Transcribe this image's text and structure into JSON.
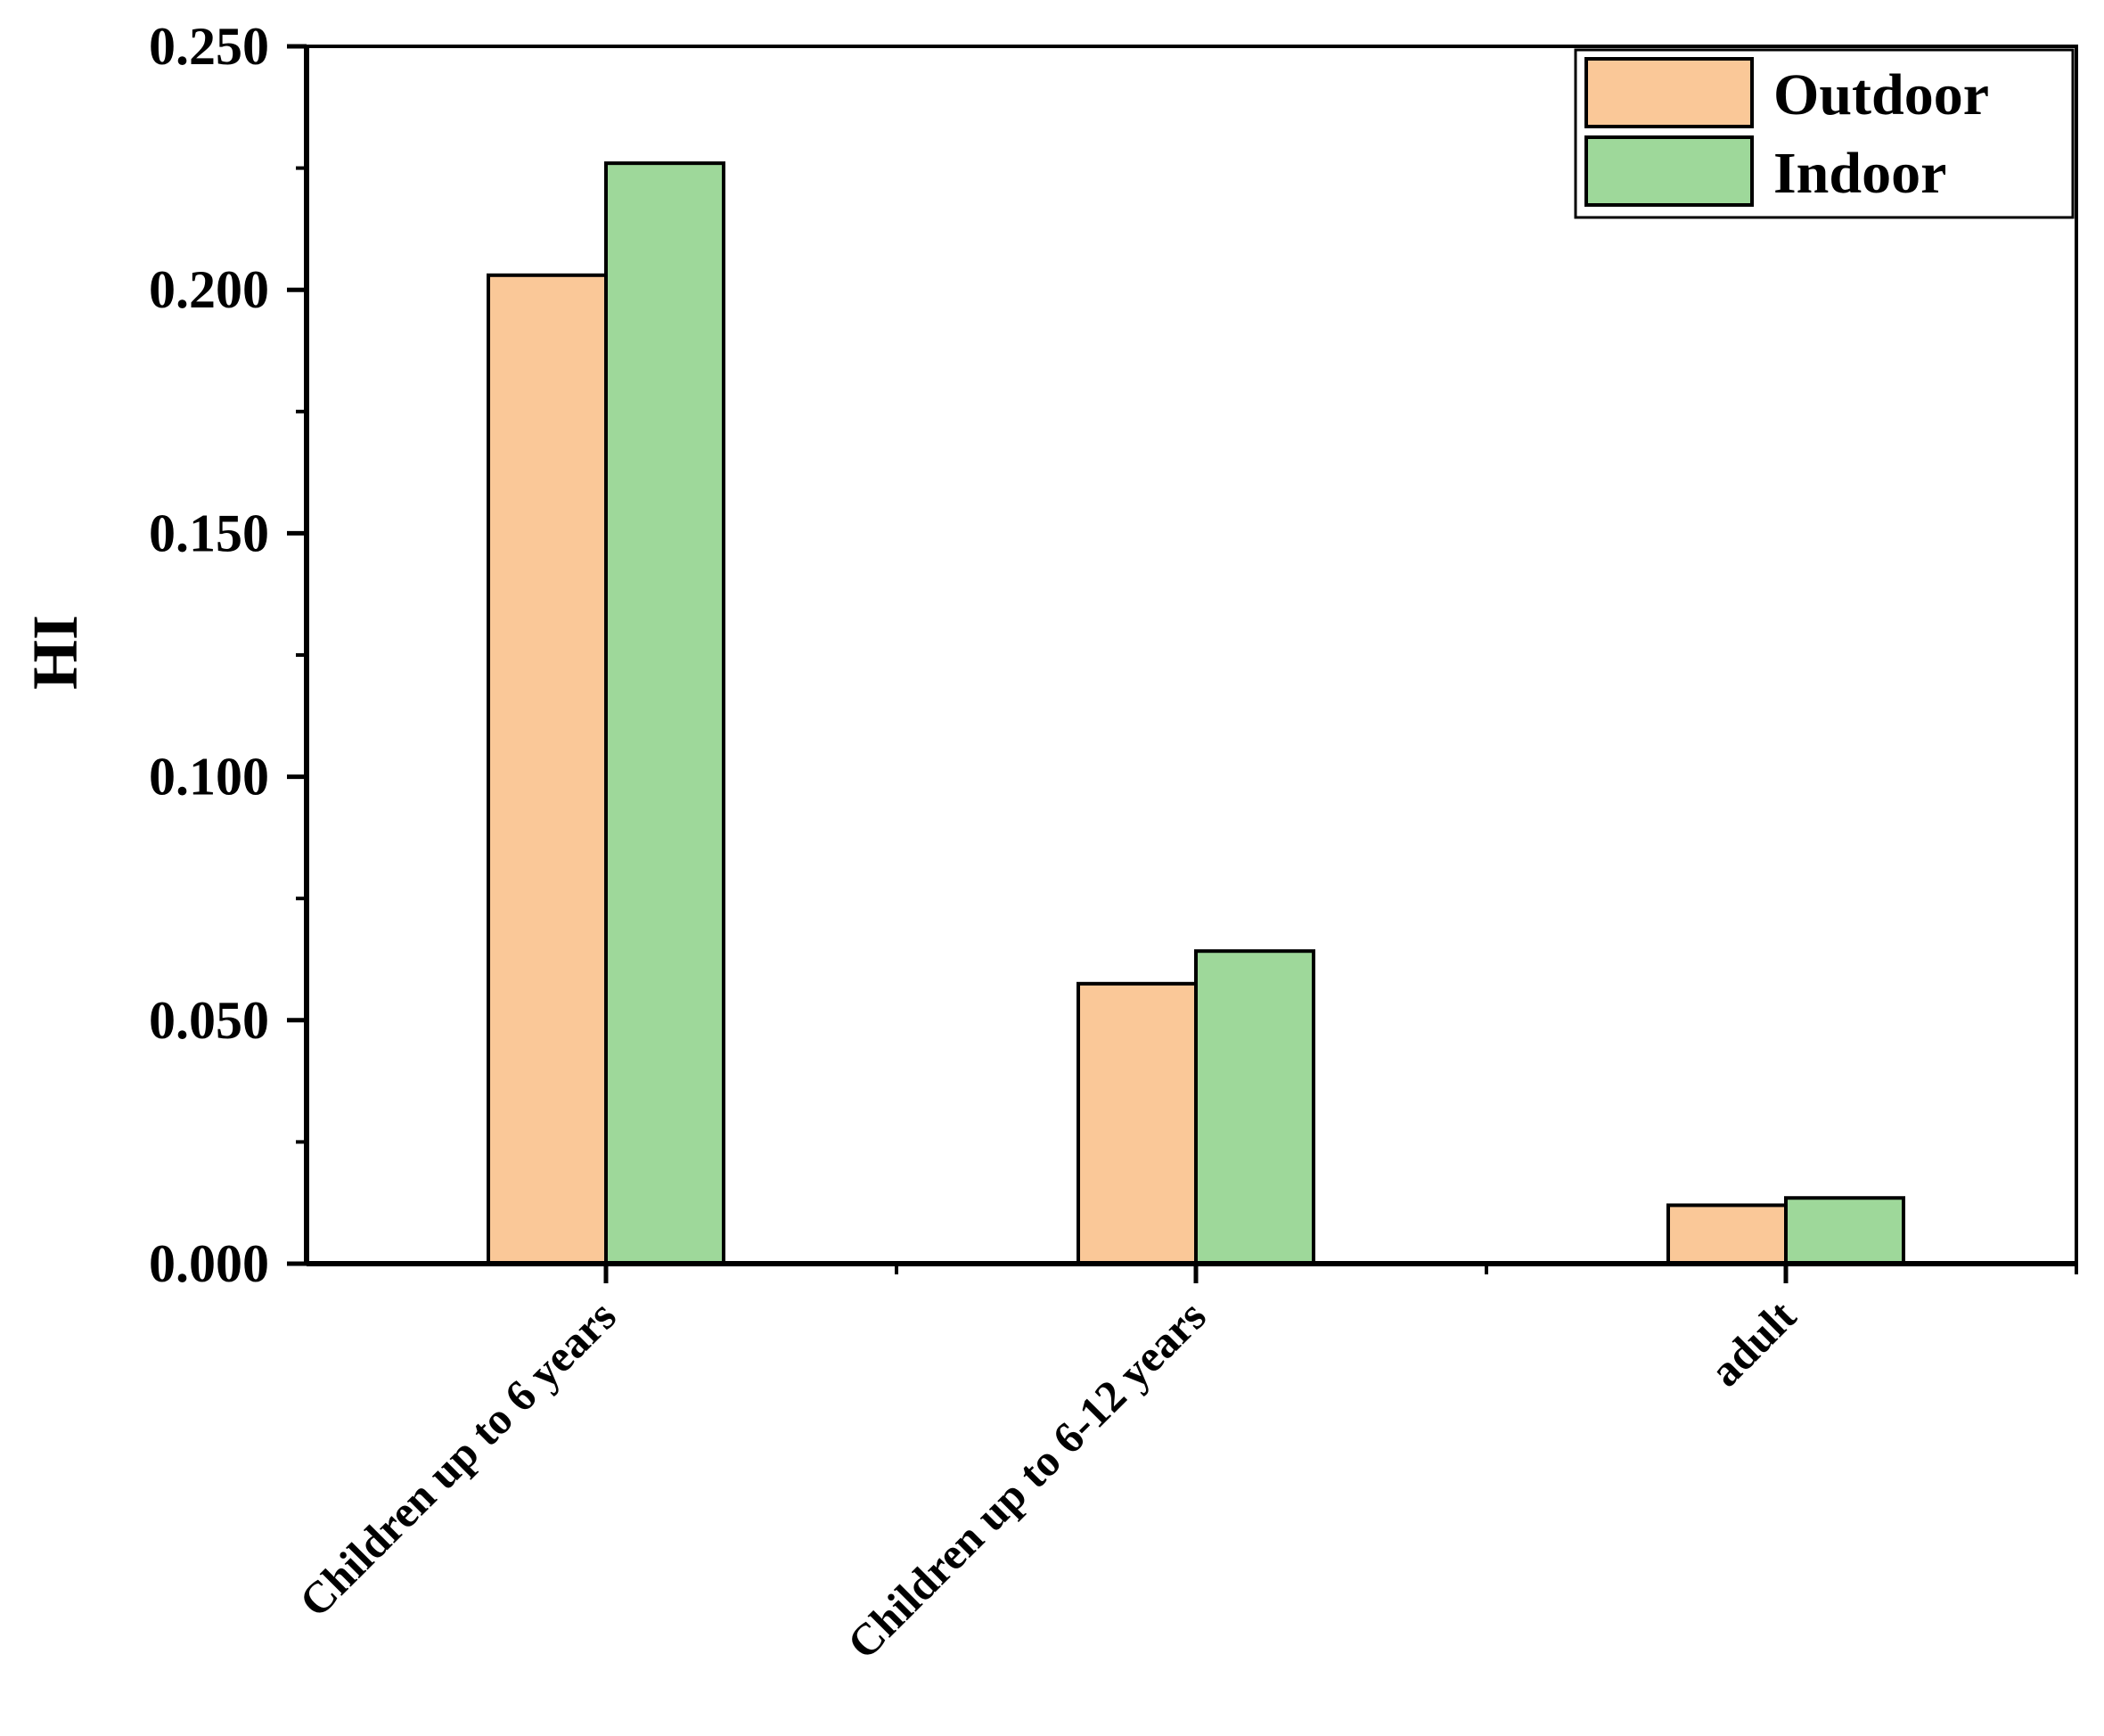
{
  "chart_data": {
    "type": "bar",
    "ylabel": "HI",
    "xlabel": "",
    "ylim": [
      0,
      0.25
    ],
    "yticks": [
      "0.000",
      "0.050",
      "0.100",
      "0.150",
      "0.200",
      "0.250"
    ],
    "categories": [
      "Children up to 6 years",
      "Children up to 6-12 years",
      "adult"
    ],
    "series": [
      {
        "name": "Outdoor",
        "color": "#FAC898",
        "values": [
          0.203,
          0.0575,
          0.012
        ]
      },
      {
        "name": "Indoor",
        "color": "#9ED89A",
        "values": [
          0.226,
          0.0642,
          0.0135
        ]
      }
    ],
    "legend_position": "top-right",
    "grid": false
  }
}
